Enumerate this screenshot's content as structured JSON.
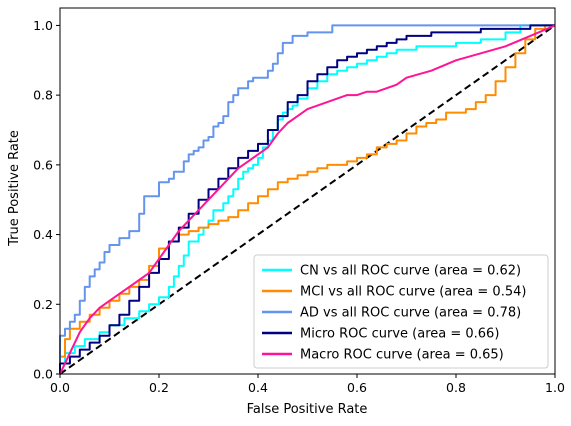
{
  "chart_data": {
    "type": "line",
    "title": "",
    "xlabel": "False Positive Rate",
    "ylabel": "True Positive Rate",
    "xlim": [
      0.0,
      1.0
    ],
    "ylim": [
      0.0,
      1.05
    ],
    "x_ticks": [
      "0.0",
      "0.2",
      "0.4",
      "0.6",
      "0.8",
      "1.0"
    ],
    "y_ticks": [
      "0.0",
      "0.2",
      "0.4",
      "0.6",
      "0.8",
      "1.0"
    ],
    "grid": false,
    "legend_position": "lower-right",
    "series": [
      {
        "name": "CN vs all ROC curve (area = 0.62)",
        "color": "#00ffff",
        "style": "step",
        "x": [
          0,
          0.01,
          0.03,
          0.05,
          0.08,
          0.1,
          0.13,
          0.16,
          0.18,
          0.2,
          0.22,
          0.23,
          0.24,
          0.25,
          0.26,
          0.28,
          0.29,
          0.3,
          0.31,
          0.33,
          0.34,
          0.35,
          0.36,
          0.37,
          0.38,
          0.39,
          0.4,
          0.41,
          0.42,
          0.43,
          0.44,
          0.45,
          0.46,
          0.47,
          0.48,
          0.5,
          0.52,
          0.54,
          0.56,
          0.58,
          0.6,
          0.62,
          0.64,
          0.66,
          0.68,
          0.7,
          0.72,
          0.74,
          0.76,
          0.78,
          0.8,
          0.85,
          0.9,
          0.93,
          0.95,
          1.0
        ],
        "y": [
          0,
          0.03,
          0.06,
          0.08,
          0.1,
          0.12,
          0.14,
          0.16,
          0.18,
          0.2,
          0.22,
          0.25,
          0.28,
          0.31,
          0.34,
          0.38,
          0.4,
          0.42,
          0.44,
          0.47,
          0.49,
          0.51,
          0.53,
          0.56,
          0.58,
          0.59,
          0.6,
          0.62,
          0.65,
          0.67,
          0.7,
          0.73,
          0.75,
          0.76,
          0.77,
          0.79,
          0.82,
          0.84,
          0.86,
          0.87,
          0.88,
          0.89,
          0.9,
          0.91,
          0.92,
          0.93,
          0.93,
          0.94,
          0.94,
          0.94,
          0.94,
          0.95,
          0.96,
          0.98,
          1.0,
          1.0
        ]
      },
      {
        "name": "MCI vs all ROC curve (area = 0.54)",
        "color": "#ff8c00",
        "style": "step",
        "x": [
          0,
          0.01,
          0.02,
          0.04,
          0.06,
          0.08,
          0.1,
          0.12,
          0.14,
          0.16,
          0.18,
          0.2,
          0.22,
          0.24,
          0.26,
          0.28,
          0.3,
          0.32,
          0.34,
          0.36,
          0.38,
          0.4,
          0.42,
          0.44,
          0.46,
          0.48,
          0.5,
          0.52,
          0.54,
          0.56,
          0.58,
          0.6,
          0.62,
          0.64,
          0.66,
          0.68,
          0.7,
          0.72,
          0.74,
          0.76,
          0.78,
          0.8,
          0.82,
          0.84,
          0.86,
          0.88,
          0.9,
          0.92,
          0.94,
          0.96,
          0.98,
          1.0
        ],
        "y": [
          0,
          0.05,
          0.1,
          0.13,
          0.15,
          0.17,
          0.19,
          0.21,
          0.23,
          0.25,
          0.27,
          0.31,
          0.36,
          0.38,
          0.4,
          0.41,
          0.42,
          0.43,
          0.44,
          0.45,
          0.47,
          0.49,
          0.51,
          0.53,
          0.55,
          0.56,
          0.57,
          0.58,
          0.59,
          0.6,
          0.6,
          0.61,
          0.62,
          0.63,
          0.65,
          0.66,
          0.67,
          0.69,
          0.71,
          0.72,
          0.73,
          0.75,
          0.75,
          0.76,
          0.78,
          0.8,
          0.84,
          0.88,
          0.92,
          0.96,
          0.99,
          1.0
        ]
      },
      {
        "name": "AD vs all ROC curve (area = 0.78)",
        "color": "#6495ed",
        "style": "step",
        "x": [
          0,
          0.01,
          0.02,
          0.03,
          0.04,
          0.05,
          0.06,
          0.07,
          0.08,
          0.09,
          0.1,
          0.12,
          0.14,
          0.16,
          0.17,
          0.19,
          0.2,
          0.22,
          0.23,
          0.25,
          0.26,
          0.27,
          0.28,
          0.29,
          0.3,
          0.31,
          0.32,
          0.33,
          0.34,
          0.35,
          0.36,
          0.37,
          0.38,
          0.39,
          0.4,
          0.42,
          0.43,
          0.44,
          0.45,
          0.46,
          0.47,
          0.48,
          0.5,
          0.52,
          0.55,
          0.57,
          0.6,
          0.7,
          0.8,
          0.9,
          1.0
        ],
        "y": [
          0,
          0.11,
          0.13,
          0.15,
          0.17,
          0.21,
          0.25,
          0.28,
          0.3,
          0.32,
          0.35,
          0.37,
          0.39,
          0.41,
          0.46,
          0.51,
          0.51,
          0.55,
          0.56,
          0.58,
          0.61,
          0.63,
          0.64,
          0.65,
          0.67,
          0.68,
          0.71,
          0.72,
          0.74,
          0.78,
          0.8,
          0.82,
          0.82,
          0.84,
          0.85,
          0.85,
          0.87,
          0.89,
          0.92,
          0.95,
          0.95,
          0.97,
          0.97,
          0.98,
          0.98,
          1.0,
          1.0,
          1.0,
          1.0,
          1.0,
          1.0
        ]
      },
      {
        "name": "Micro ROC curve (area = 0.66)",
        "color": "#000080",
        "style": "step",
        "x": [
          0,
          0.02,
          0.04,
          0.06,
          0.08,
          0.1,
          0.12,
          0.14,
          0.16,
          0.18,
          0.2,
          0.22,
          0.24,
          0.26,
          0.28,
          0.3,
          0.32,
          0.34,
          0.36,
          0.38,
          0.4,
          0.42,
          0.44,
          0.46,
          0.48,
          0.5,
          0.52,
          0.54,
          0.56,
          0.58,
          0.6,
          0.62,
          0.64,
          0.66,
          0.68,
          0.7,
          0.75,
          0.8,
          0.85,
          0.9,
          0.95,
          1.0
        ],
        "y": [
          0,
          0.03,
          0.05,
          0.07,
          0.09,
          0.11,
          0.14,
          0.17,
          0.21,
          0.25,
          0.29,
          0.33,
          0.38,
          0.42,
          0.46,
          0.5,
          0.53,
          0.56,
          0.59,
          0.62,
          0.64,
          0.66,
          0.7,
          0.74,
          0.78,
          0.8,
          0.84,
          0.86,
          0.88,
          0.9,
          0.91,
          0.92,
          0.93,
          0.94,
          0.95,
          0.96,
          0.97,
          0.98,
          0.98,
          0.99,
          0.99,
          1.0
        ]
      },
      {
        "name": "Macro ROC curve (area = 0.65)",
        "color": "#ff1493",
        "style": "line",
        "x": [
          0,
          0.02,
          0.04,
          0.06,
          0.08,
          0.1,
          0.12,
          0.14,
          0.16,
          0.18,
          0.2,
          0.22,
          0.24,
          0.26,
          0.28,
          0.3,
          0.32,
          0.34,
          0.36,
          0.38,
          0.4,
          0.42,
          0.44,
          0.46,
          0.48,
          0.5,
          0.52,
          0.54,
          0.56,
          0.58,
          0.6,
          0.62,
          0.64,
          0.66,
          0.68,
          0.7,
          0.75,
          0.8,
          0.85,
          0.9,
          0.95,
          1.0
        ],
        "y": [
          0,
          0.06,
          0.12,
          0.16,
          0.19,
          0.21,
          0.23,
          0.25,
          0.27,
          0.29,
          0.33,
          0.37,
          0.41,
          0.44,
          0.47,
          0.5,
          0.53,
          0.56,
          0.59,
          0.61,
          0.63,
          0.65,
          0.69,
          0.72,
          0.74,
          0.76,
          0.77,
          0.78,
          0.79,
          0.8,
          0.8,
          0.81,
          0.81,
          0.82,
          0.83,
          0.85,
          0.87,
          0.9,
          0.92,
          0.94,
          0.97,
          1.0
        ]
      },
      {
        "name": "",
        "color": "#000000",
        "style": "dashed",
        "x": [
          0,
          1
        ],
        "y": [
          0,
          1
        ]
      }
    ]
  }
}
